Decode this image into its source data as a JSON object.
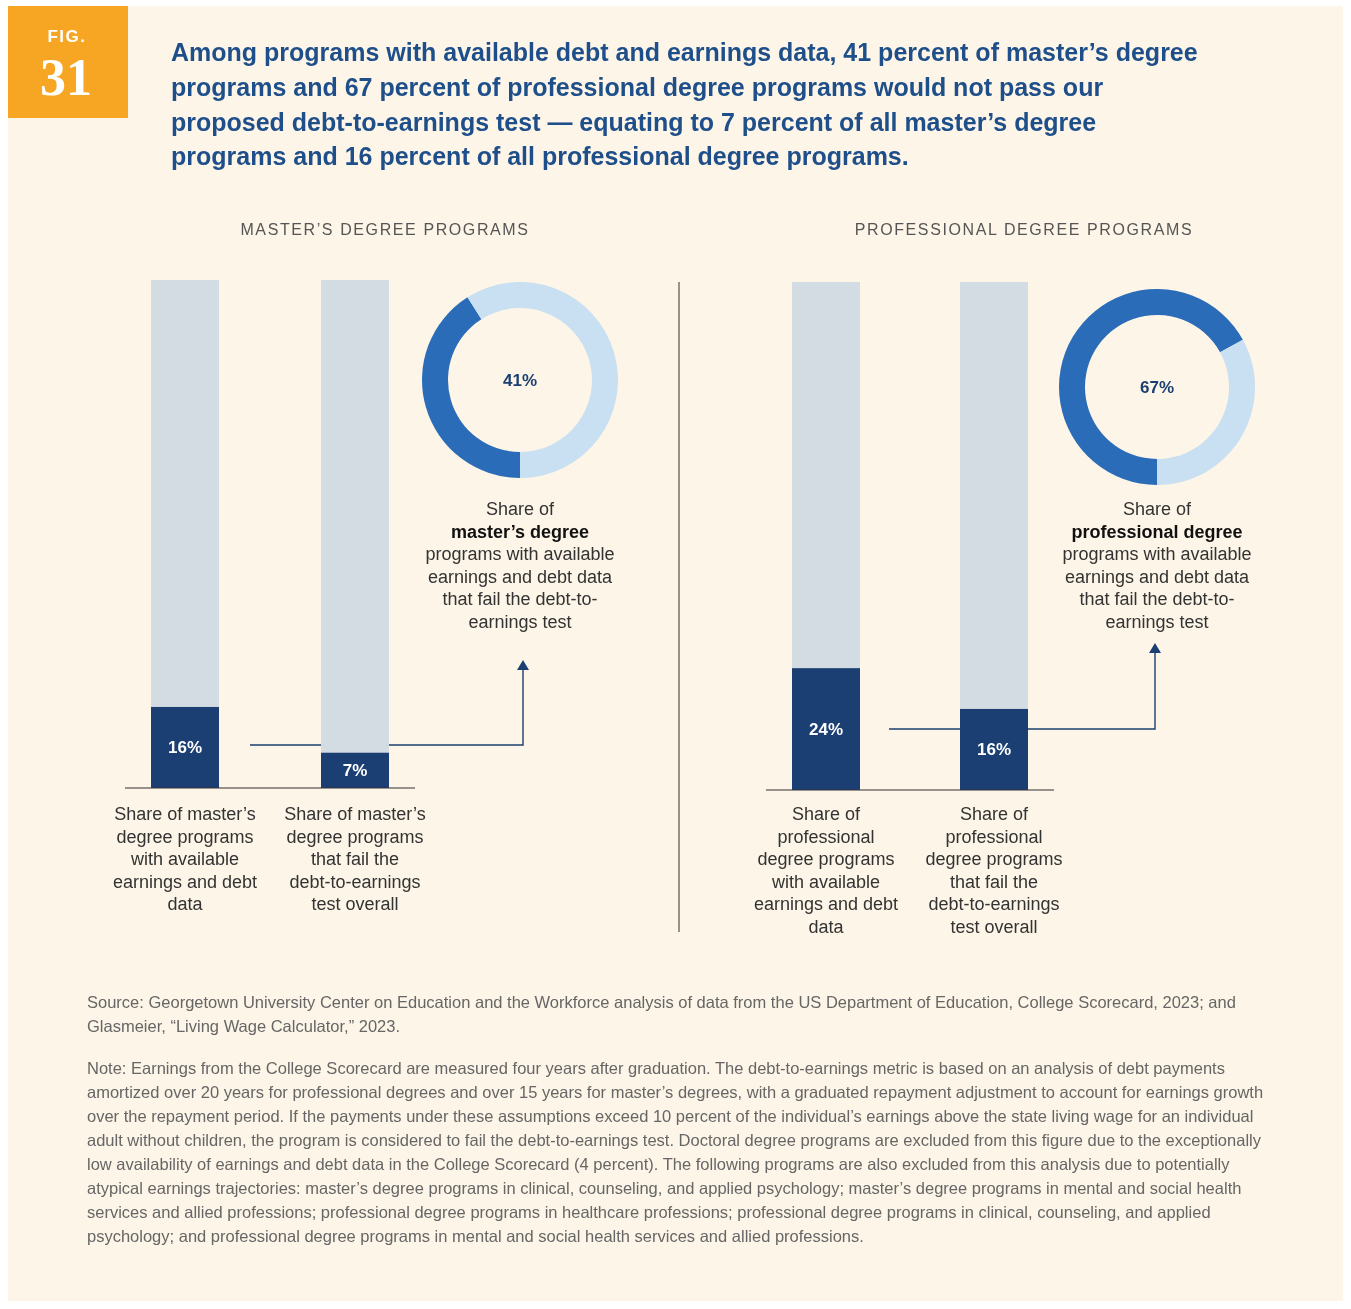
{
  "chart_data": [
    {
      "type": "bar",
      "stacked": true,
      "title": "Among programs with available debt and earnings data, 41 percent of master’s degree programs and 67 percent of professional degree programs would not pass our proposed debt-to-earnings test — equating to 7 percent of all master’s degree programs and 16 percent of all professional degree programs.",
      "subtitle": "MASTER’S DEGREE PROGRAMS",
      "categories": [
        "Share of master’s degree programs with available earnings and debt data",
        "Share of master’s degree programs that fail the debt-to-earnings test overall"
      ],
      "ylim": [
        0,
        100
      ],
      "series": [
        {
          "color": "#1b3f72",
          "values": [
            16,
            7
          ],
          "value_labels": [
            "16%",
            "7%"
          ]
        },
        {
          "color": "#d3dbe3",
          "values": [
            84,
            93
          ]
        }
      ],
      "annotations": [
        "FIG.",
        "31",
        "Source: Georgetown University Center on Education and the Workforce analysis of data from the US Department of Education, College Scorecard, 2023; and Glasmeier, “Living Wage Calculator,” 2023.",
        "Note: Earnings from the College Scorecard are measured four years after graduation. The debt-to-earnings metric is based on an analysis of debt payments amortized over 20 years for professional degrees and over 15 years for master’s degrees, with a graduated repayment adjustment to account for earnings growth over the repayment period. If the payments under these assumptions exceed 10 percent of the individual’s earnings above the state living wage for an individual adult without children, the program is considered to fail the debt-to-earnings test. Doctoral degree programs are excluded from this figure due to the exceptionally low availability of earnings and debt data in the College Scorecard (4 percent). The following programs are also excluded from this analysis due to potentially atypical earnings trajectories: master’s degree programs in clinical, counseling, and applied psychology; master’s degree programs in mental and social health services and allied professions; professional degree programs in healthcare professions; professional degree programs in clinical, counseling, and applied psychology; and professional degree programs in mental and social health services and allied professions."
      ]
    },
    {
      "type": "donut",
      "categories": [
        null,
        null
      ],
      "values": [
        41,
        59
      ],
      "colors": [
        "#2b6cb8",
        "#c9dff2"
      ],
      "value_labels": [
        "41%",
        null
      ],
      "annotations": [
        "Share of",
        "master’s degree",
        "programs with available earnings and debt data that fail the debt-to-earnings test"
      ]
    },
    {
      "type": "bar",
      "stacked": true,
      "subtitle": "PROFESSIONAL DEGREE PROGRAMS",
      "categories": [
        "Share of professional degree programs with available earnings and debt data",
        "Share of professional degree programs that fail the debt-to-earnings test overall"
      ],
      "ylim": [
        0,
        100
      ],
      "series": [
        {
          "color": "#1b3f72",
          "values": [
            24,
            16
          ],
          "value_labels": [
            "24%",
            "16%"
          ]
        },
        {
          "color": "#d3dbe3",
          "values": [
            76,
            84
          ]
        }
      ]
    },
    {
      "type": "donut",
      "categories": [
        null,
        null
      ],
      "values": [
        67,
        33
      ],
      "colors": [
        "#2b6cb8",
        "#c9dff2"
      ],
      "value_labels": [
        "67%",
        null
      ],
      "annotations": [
        "Share of",
        "professional degree",
        "programs with available earnings and debt data that fail the debt-to-earnings test"
      ]
    }
  ]
}
